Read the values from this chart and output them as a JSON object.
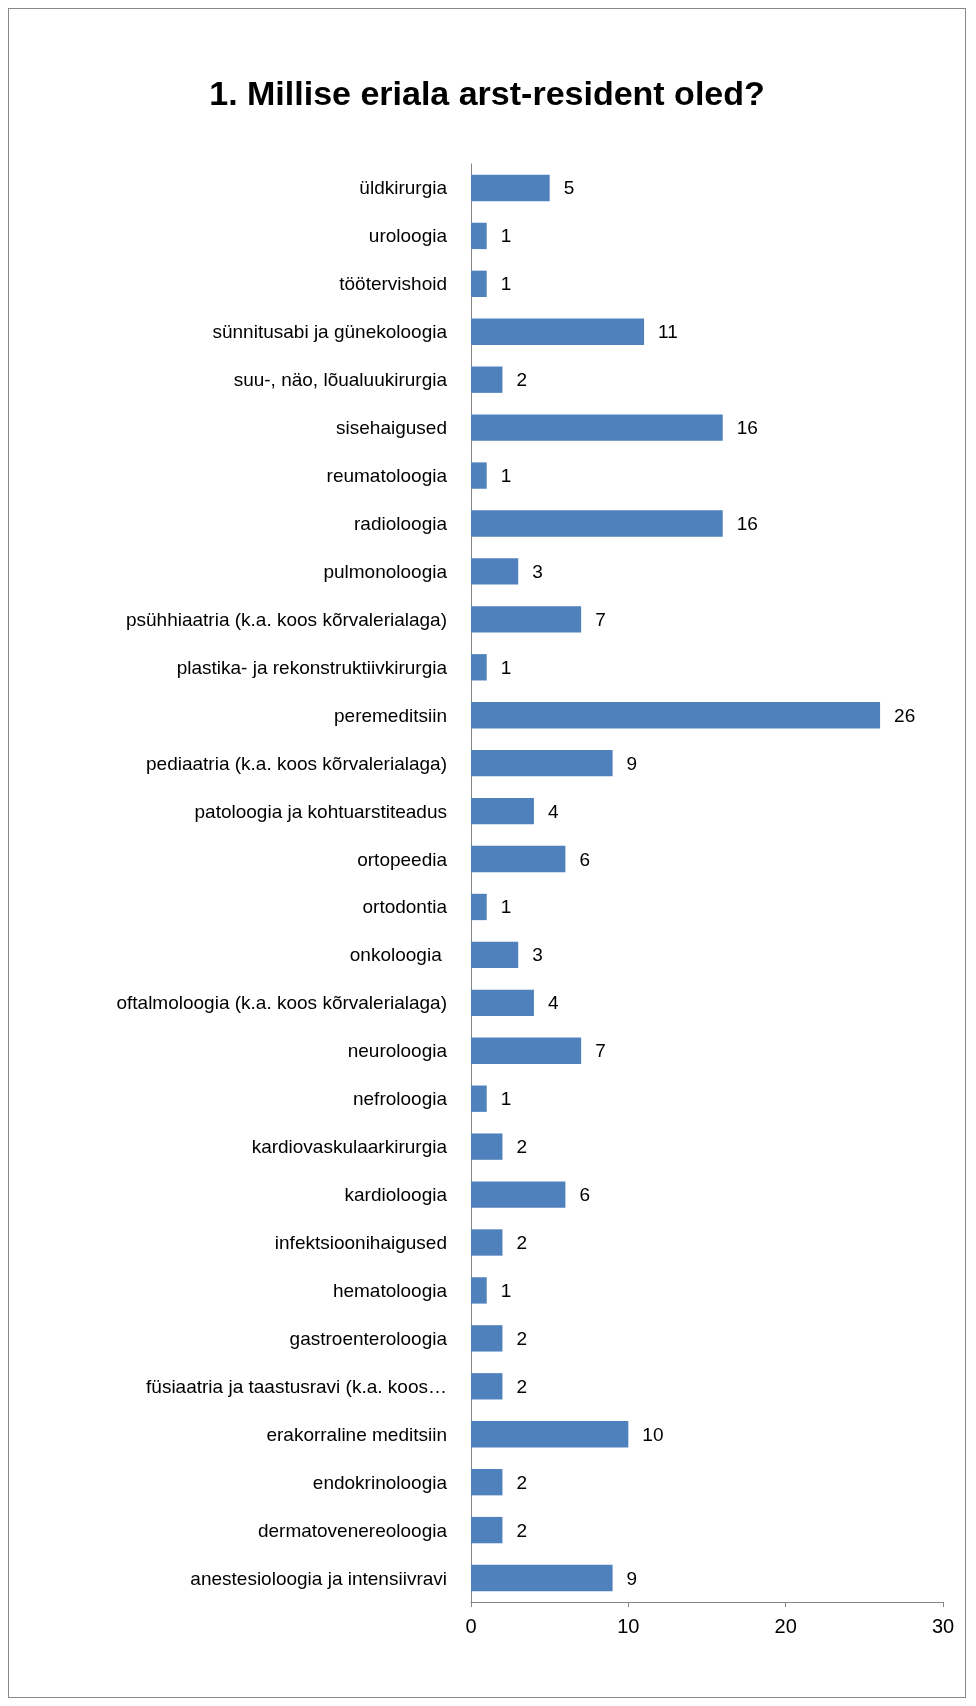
{
  "chart_data": {
    "type": "bar",
    "orientation": "horizontal",
    "title": "1. Millise eriala arst-resident oled?",
    "categories": [
      "üldkirurgia",
      "uroloogia",
      "töötervishoid",
      "sünnitusabi ja günekoloogia",
      "suu-, näo, lõualuukirurgia",
      "sisehaigused",
      "reumatoloogia",
      "radioloogia",
      "pulmonoloogia",
      "psühhiaatria (k.a. koos kõrvalerialaga)",
      "plastika- ja rekonstruktiivkirurgia",
      "peremeditsiin",
      "pediaatria (k.a. koos kõrvalerialaga)",
      "patoloogia ja kohtuarstiteadus",
      "ortopeedia",
      "ortodontia",
      "onkoloogia ",
      "oftalmoloogia (k.a. koos kõrvalerialaga)",
      "neuroloogia",
      "nefroloogia",
      "kardiovaskulaarkirurgia",
      "kardioloogia",
      "infektsioonihaigused",
      "hematoloogia",
      "gastroenteroloogia",
      "füsiaatria ja taastusravi (k.a. koos…",
      "erakorraline meditsiin",
      "endokrinoloogia",
      "dermatovenereoloogia",
      "anestesioloogia ja intensiivravi"
    ],
    "values": [
      5,
      1,
      1,
      11,
      2,
      16,
      1,
      16,
      3,
      7,
      1,
      26,
      9,
      4,
      6,
      1,
      3,
      4,
      7,
      1,
      2,
      6,
      2,
      1,
      2,
      2,
      10,
      2,
      2,
      9
    ],
    "color": "#4f81bd",
    "xlim": [
      0,
      30
    ],
    "xticks": [
      0,
      10,
      20,
      30
    ],
    "grid": false,
    "data_labels": true
  }
}
